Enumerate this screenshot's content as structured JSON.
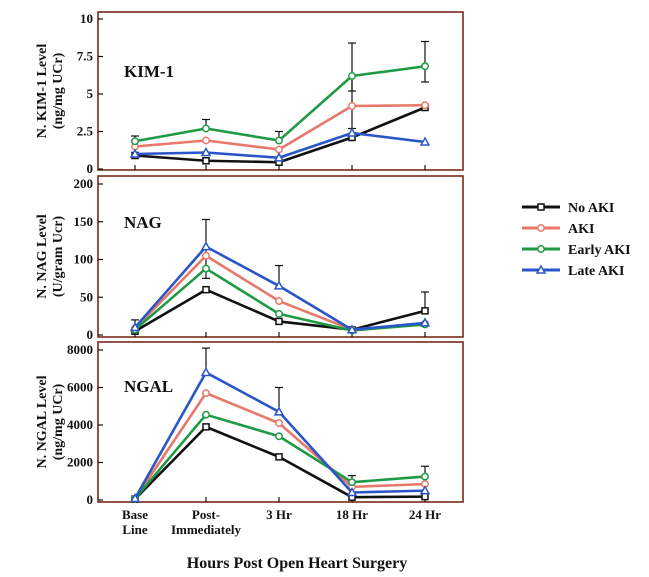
{
  "figure": {
    "xlabel": "Hours Post Open Heart Surgery",
    "categories": [
      "Base\nLine",
      "Post-\nImmediately",
      "3 Hr",
      "18 Hr",
      "24 Hr"
    ],
    "legend_position": "right",
    "frame_color": "#7a2a1a"
  },
  "legend": [
    {
      "name": "No AKI",
      "color": "#111111",
      "marker": "square"
    },
    {
      "name": "AKI",
      "color": "#e8786a",
      "marker": "circle"
    },
    {
      "name": "Early AKI",
      "color": "#1e9a45",
      "marker": "circle"
    },
    {
      "name": "Late AKI",
      "color": "#2a55c8",
      "marker": "triangle"
    }
  ],
  "chart_data": [
    {
      "type": "line",
      "title": "KIM-1",
      "ylabel": "N. KIM-1 Level\n(ng/mg UCr)",
      "ylim": [
        0,
        10
      ],
      "yticks": [
        "0",
        "2.5",
        "5",
        "7.5",
        "10"
      ],
      "ytick_values": [
        0,
        2.5,
        5,
        7.5,
        10
      ],
      "x": [
        0,
        1,
        2,
        3,
        4
      ],
      "series": [
        {
          "name": "No AKI",
          "color": "#111111",
          "marker": "square",
          "values": [
            0.9,
            0.55,
            0.45,
            2.1,
            4.1
          ]
        },
        {
          "name": "AKI",
          "color": "#e8786a",
          "marker": "circle",
          "values": [
            1.5,
            1.9,
            1.3,
            4.2,
            4.25
          ]
        },
        {
          "name": "Early AKI",
          "color": "#1e9a45",
          "marker": "circle",
          "values": [
            1.85,
            2.7,
            1.9,
            6.2,
            6.85
          ]
        },
        {
          "name": "Late AKI",
          "color": "#2a55c8",
          "marker": "triangle",
          "values": [
            1.0,
            1.1,
            0.75,
            2.4,
            1.8
          ]
        }
      ],
      "error_bars": [
        [
          0,
          2.2
        ],
        [
          1,
          3.3
        ],
        [
          2,
          2.5
        ],
        [
          3,
          8.4
        ],
        [
          3,
          5.2
        ],
        [
          4,
          8.5
        ],
        [
          4,
          5.8
        ],
        [
          3,
          2.7
        ]
      ]
    },
    {
      "type": "line",
      "title": "NAG",
      "ylabel": "N. NAG Level\n(U/gram Ucr)",
      "ylim": [
        0,
        200
      ],
      "yticks": [
        "0",
        "50",
        "100",
        "150",
        "200"
      ],
      "ytick_values": [
        0,
        50,
        100,
        150,
        200
      ],
      "x": [
        0,
        1,
        2,
        3,
        4
      ],
      "series": [
        {
          "name": "No AKI",
          "color": "#111111",
          "marker": "square",
          "values": [
            5,
            60,
            18,
            7,
            32
          ]
        },
        {
          "name": "AKI",
          "color": "#e8786a",
          "marker": "circle",
          "values": [
            9,
            105,
            45,
            7,
            15
          ]
        },
        {
          "name": "Early AKI",
          "color": "#1e9a45",
          "marker": "circle",
          "values": [
            7,
            88,
            28,
            6,
            14
          ]
        },
        {
          "name": "Late AKI",
          "color": "#2a55c8",
          "marker": "triangle",
          "values": [
            10,
            117,
            65,
            7,
            16
          ]
        }
      ],
      "error_bars": [
        [
          0,
          20
        ],
        [
          1,
          153
        ],
        [
          2,
          92
        ],
        [
          4,
          57
        ],
        [
          1,
          75
        ]
      ]
    },
    {
      "type": "line",
      "title": "NGAL",
      "ylabel": "N. NGAL Level\n(ng/mg UCr)",
      "ylim": [
        0,
        8000
      ],
      "yticks": [
        "0",
        "2000",
        "4000",
        "6000",
        "8000"
      ],
      "ytick_values": [
        0,
        2000,
        4000,
        6000,
        8000
      ],
      "x": [
        0,
        1,
        2,
        3,
        4
      ],
      "series": [
        {
          "name": "No AKI",
          "color": "#111111",
          "marker": "square",
          "values": [
            50,
            3900,
            2300,
            150,
            180
          ]
        },
        {
          "name": "AKI",
          "color": "#e8786a",
          "marker": "circle",
          "values": [
            60,
            5700,
            4100,
            700,
            850
          ]
        },
        {
          "name": "Early AKI",
          "color": "#1e9a45",
          "marker": "circle",
          "values": [
            70,
            4550,
            3400,
            950,
            1250
          ]
        },
        {
          "name": "Late AKI",
          "color": "#2a55c8",
          "marker": "triangle",
          "values": [
            80,
            6800,
            4700,
            400,
            500
          ]
        }
      ],
      "error_bars": [
        [
          1,
          8100
        ],
        [
          2,
          6000
        ],
        [
          3,
          1300
        ],
        [
          4,
          1800
        ]
      ]
    }
  ]
}
